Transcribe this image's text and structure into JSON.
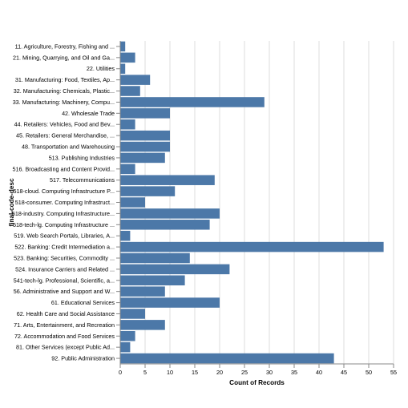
{
  "chart_data": {
    "type": "bar",
    "orientation": "horizontal",
    "xlabel": "Count of Records",
    "ylabel": "final-code-desc",
    "xlim": [
      0,
      55
    ],
    "xticks": [
      0,
      5,
      10,
      15,
      20,
      25,
      30,
      35,
      40,
      45,
      50,
      55
    ],
    "grid": true,
    "bar_color": "#4c78a8",
    "categories": [
      "11. Agriculture, Forestry, Fishing and ...",
      "21. Mining, Quarrying, and Oil and Ga...",
      "22. Utilities",
      "31. Manufacturing: Food, Textiles, Ap...",
      "32. Manufacturing: Chemicals, Plastic...",
      "33. Manufacturing: Machinery, Compu...",
      "42. Wholesale Trade",
      "44. Retailers: Vehicles, Food and Bev...",
      "45. Retailers: General Merchandise, ...",
      "48. Transportation and Warehousing",
      "513. Publishing Industries",
      "516. Broadcasting and Content Provid...",
      "517. Telecommunications",
      "518-cloud. Computing Infrastructure P...",
      "518-consumer. Computing Infrastruct...",
      "518-industry. Computing Infrastructure...",
      "518-tech-lg. Computing Infrastructure ...",
      "519. Web Search Portals, Libraries, A...",
      "522. Banking: Credit Intermediation a...",
      "523. Banking: Securities, Commodity ...",
      "524. Insurance Carriers and Related ...",
      "541-tech-lg. Professional, Scientific, a...",
      "56. Administrative and Support and W...",
      "61. Educational Services",
      "62. Health Care and Social Assistance",
      "71. Arts, Entertainment, and Recreation",
      "72. Accommodation and Food Services",
      "81. Other Services (except Public Ad...",
      "92. Public Administration"
    ],
    "values": [
      1,
      3,
      1,
      6,
      4,
      29,
      10,
      3,
      10,
      10,
      9,
      3,
      19,
      11,
      5,
      20,
      18,
      2,
      53,
      14,
      22,
      13,
      9,
      20,
      5,
      9,
      3,
      2,
      43
    ]
  }
}
